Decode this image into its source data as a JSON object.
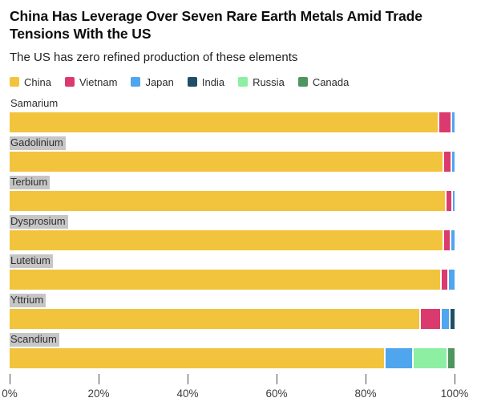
{
  "header": {
    "title": "China Has Leverage Over Seven Rare Earth Metals Amid Trade Tensions With the US",
    "subtitle": "The US has zero refined production of these elements"
  },
  "legend": [
    {
      "label": "China",
      "color": "#F2C43D"
    },
    {
      "label": "Vietnam",
      "color": "#DB3A6E"
    },
    {
      "label": "Japan",
      "color": "#4FA5EE"
    },
    {
      "label": "India",
      "color": "#1F4E68"
    },
    {
      "label": "Russia",
      "color": "#8DEFA2"
    },
    {
      "label": "Canada",
      "color": "#4E9560"
    }
  ],
  "chart_data": {
    "type": "bar",
    "orientation": "horizontal",
    "stacked": true,
    "unit": "percent share of refined production",
    "title": "China Has Leverage Over Seven Rare Earth Metals Amid Trade Tensions With the US",
    "subtitle": "The US has zero refined production of these elements",
    "categories": [
      "Samarium",
      "Gadolinium",
      "Terbium",
      "Dysprosium",
      "Lutetium",
      "Yttrium",
      "Scandium"
    ],
    "category_label_highlighted": [
      false,
      true,
      true,
      true,
      true,
      true,
      true
    ],
    "series": [
      {
        "name": "China",
        "color": "#F2C43D",
        "values": [
          97.0,
          98.0,
          98.5,
          98.0,
          97.5,
          93.0,
          85.0
        ]
      },
      {
        "name": "Vietnam",
        "color": "#DB3A6E",
        "values": [
          2.5,
          1.5,
          1.2,
          1.3,
          1.2,
          4.5,
          0
        ]
      },
      {
        "name": "Japan",
        "color": "#4FA5EE",
        "values": [
          0.5,
          0.5,
          0.3,
          0.7,
          1.3,
          1.5,
          6.0
        ]
      },
      {
        "name": "India",
        "color": "#1F4E68",
        "values": [
          0,
          0,
          0,
          0,
          0,
          1.0,
          0
        ]
      },
      {
        "name": "Russia",
        "color": "#8DEFA2",
        "values": [
          0,
          0,
          0,
          0,
          0,
          0,
          7.5
        ]
      },
      {
        "name": "Canada",
        "color": "#4E9560",
        "values": [
          0,
          0,
          0,
          0,
          0,
          0,
          1.5
        ]
      }
    ],
    "x_axis": {
      "ticks": [
        "0%",
        "20%",
        "40%",
        "60%",
        "80%",
        "100%"
      ],
      "range": [
        0,
        100
      ]
    },
    "grid": false,
    "legend_position": "top"
  }
}
